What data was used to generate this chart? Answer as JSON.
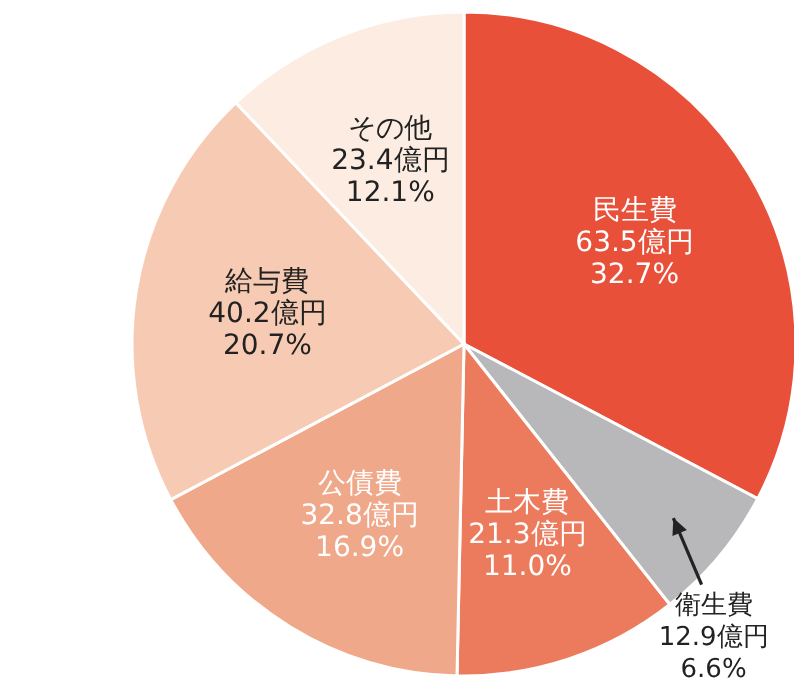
{
  "chart_data": {
    "type": "pie",
    "categories": [
      "民生費",
      "衛生費",
      "土木費",
      "公債費",
      "給与費",
      "その他"
    ],
    "values": [
      63.5,
      12.9,
      21.3,
      32.8,
      40.2,
      23.4
    ],
    "value_labels": [
      "63.5億円\n32.7%",
      "12.9億円\n6.6%",
      "21.3億円\n11.0%",
      "32.8億円\n16.9%",
      "40.2億円\n20.7%",
      "23.4億円\n12.1%"
    ],
    "colors": [
      "#e8503a",
      "#b8b8bb",
      "#ec7b5d",
      "#f0a88a",
      "#f7cbb3",
      "#fcece2"
    ],
    "legend": false
  }
}
